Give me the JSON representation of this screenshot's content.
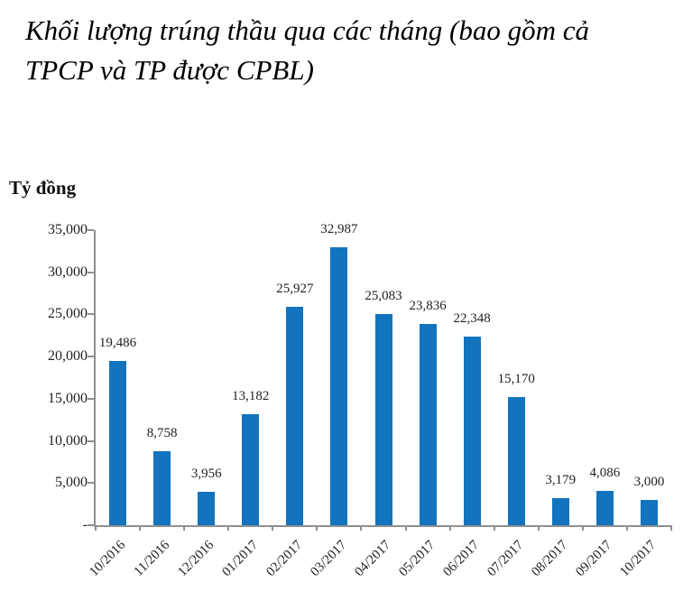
{
  "title": {
    "full": "Khối lượng trúng thầu qua các tháng (bao gồm cả TPCP và TP được CPBL)",
    "lines": [
      "Khối lượng trúng thầu qua các tháng (bao gồm cả",
      "TPCP và TP được CPBL)"
    ]
  },
  "chart_data": {
    "type": "bar",
    "title": "Khối lượng trúng thầu qua các tháng (bao gồm cả TPCP và TP được CPBL)",
    "ylabel": "Tỷ đồng",
    "xlabel": "",
    "categories": [
      "10/2016",
      "11/2016",
      "12/2016",
      "01/2017",
      "02/2017",
      "03/2017",
      "04/2017",
      "05/2017",
      "06/2017",
      "07/2017",
      "08/2017",
      "09/2017",
      "10/2017"
    ],
    "values": [
      19486,
      8758,
      3956,
      13182,
      25927,
      32987,
      25083,
      23836,
      22348,
      15170,
      3179,
      4086,
      3000
    ],
    "data_labels": [
      "19,486",
      "8,758",
      "3,956",
      "13,182",
      "25,927",
      "32,987",
      "25,083",
      "23,836",
      "22,348",
      "15,170",
      "3,179",
      "4,086",
      "3,000"
    ],
    "y_ticks": [
      {
        "label": "35,000",
        "value": 35000
      },
      {
        "label": "30,000",
        "value": 30000
      },
      {
        "label": "25,000",
        "value": 25000
      },
      {
        "label": "20,000",
        "value": 20000
      },
      {
        "label": "15,000",
        "value": 15000
      },
      {
        "label": "10,000",
        "value": 10000
      },
      {
        "label": "5,000",
        "value": 5000
      },
      {
        "label": "-",
        "value": 0
      }
    ],
    "ylim": [
      0,
      35000
    ],
    "grid": false,
    "legend": "none",
    "bar_color": "#1273BE",
    "axis_color": "#8F8F8F",
    "text_color": "#1F1F1F"
  }
}
